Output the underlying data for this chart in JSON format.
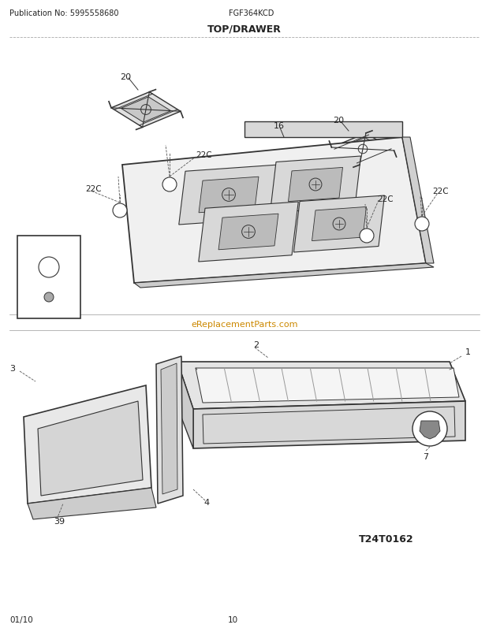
{
  "title": "TOP/DRAWER",
  "pub_no": "Publication No: 5995558680",
  "model": "FGF364KCD",
  "footer_left": "01/10",
  "footer_center": "10",
  "watermark": "eReplacementParts.com",
  "diagram_id": "T24T0162",
  "bg_color": "#ffffff",
  "line_color": "#333333",
  "text_color": "#222222"
}
